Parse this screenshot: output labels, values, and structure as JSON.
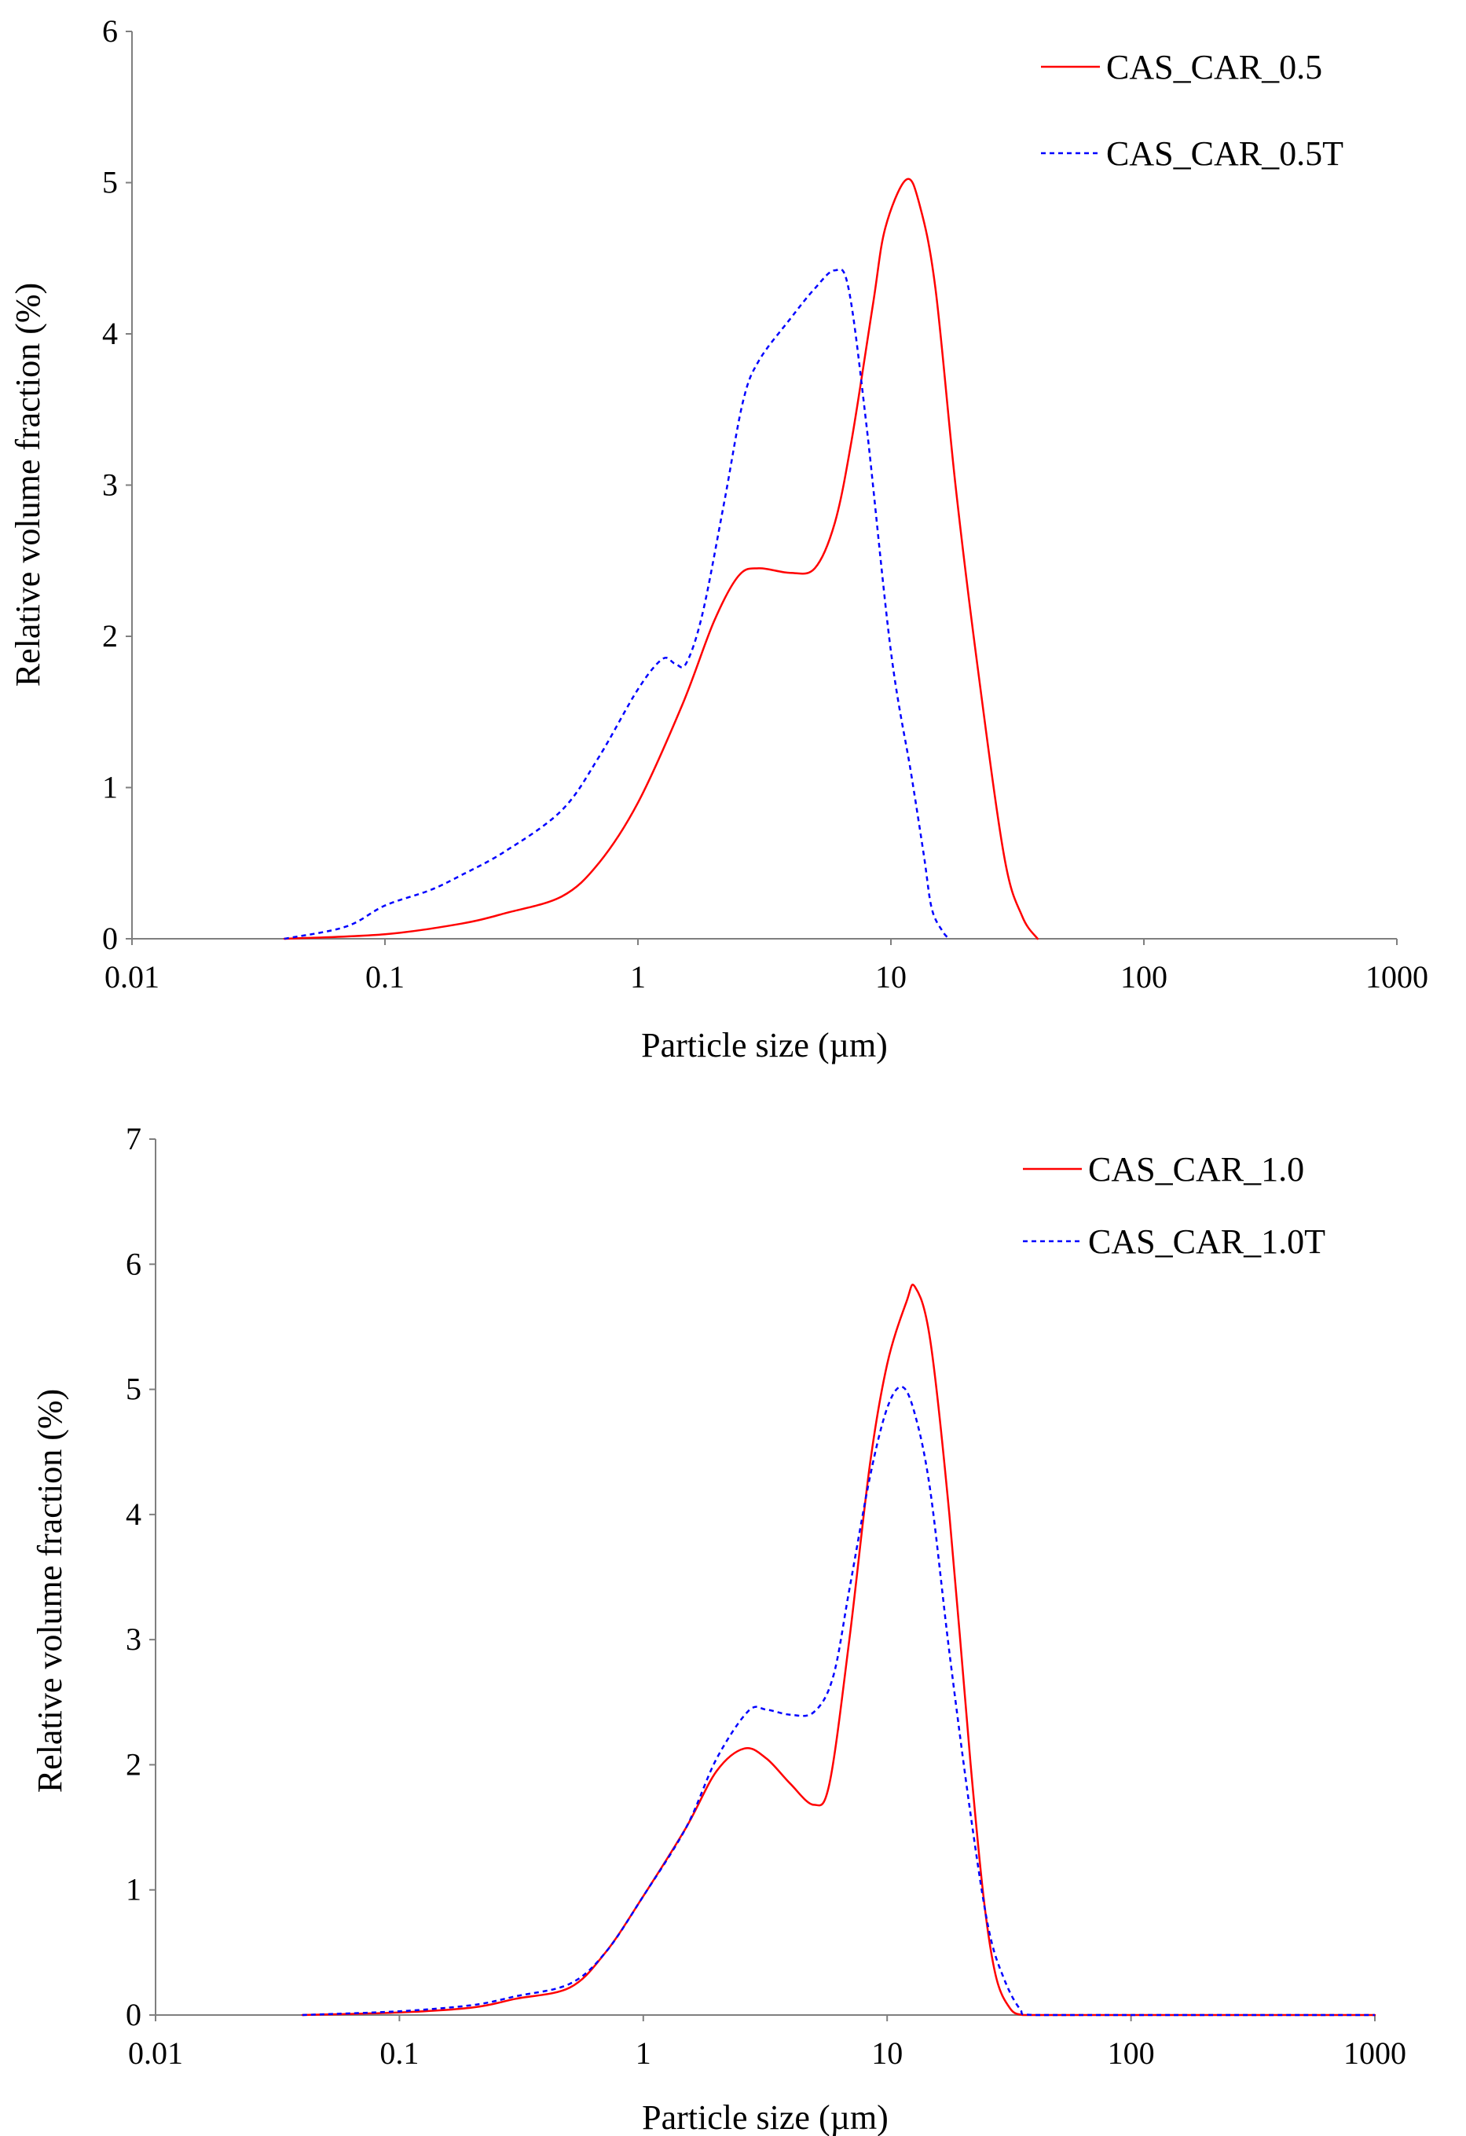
{
  "chart_data": [
    {
      "type": "line",
      "xscale": "log",
      "xlabel": "Particle size (µm)",
      "ylabel": "Relative volume fraction (%)",
      "xlim": [
        0.01,
        1000
      ],
      "ylim": [
        0,
        6
      ],
      "xticks": [
        0.01,
        0.1,
        1,
        10,
        100,
        1000
      ],
      "xtick_labels": [
        "0.01",
        "0.1",
        "1",
        "10",
        "100",
        "1000"
      ],
      "yticks": [
        0,
        1,
        2,
        3,
        4,
        5,
        6
      ],
      "ytick_labels": [
        "0",
        "1",
        "2",
        "3",
        "4",
        "5",
        "6"
      ],
      "grid": false,
      "legend_position": "top-right",
      "series": [
        {
          "name": "CAS_CAR_0.5",
          "color": "#ff0000",
          "style": "solid",
          "x": [
            0.04,
            0.1,
            0.2,
            0.3,
            0.5,
            0.7,
            1.0,
            1.5,
            2.0,
            2.5,
            3.0,
            4.0,
            5.0,
            6.0,
            7.0,
            8.5,
            9.5,
            11.5,
            13.0,
            15.0,
            18.0,
            22.0,
            28.0,
            33.0,
            38.0
          ],
          "y": [
            0.0,
            0.03,
            0.1,
            0.17,
            0.28,
            0.5,
            0.9,
            1.55,
            2.1,
            2.4,
            2.45,
            2.42,
            2.45,
            2.75,
            3.3,
            4.2,
            4.7,
            5.02,
            4.85,
            4.3,
            3.0,
            1.8,
            0.55,
            0.15,
            0.0
          ]
        },
        {
          "name": "CAS_CAR_0.5T",
          "color": "#0000ff",
          "style": "dashed",
          "x": [
            0.04,
            0.07,
            0.1,
            0.15,
            0.2,
            0.3,
            0.5,
            0.7,
            1.0,
            1.25,
            1.4,
            1.55,
            1.8,
            2.2,
            2.6,
            3.0,
            4.0,
            5.0,
            6.0,
            6.8,
            8.0,
            10.0,
            12.0,
            13.5,
            14.5,
            16.0,
            17.0
          ],
          "y": [
            0.0,
            0.08,
            0.22,
            0.32,
            0.42,
            0.58,
            0.85,
            1.2,
            1.65,
            1.85,
            1.82,
            1.82,
            2.15,
            2.9,
            3.55,
            3.82,
            4.1,
            4.3,
            4.42,
            4.3,
            3.4,
            1.9,
            1.1,
            0.55,
            0.2,
            0.05,
            0.0
          ]
        }
      ]
    },
    {
      "type": "line",
      "xscale": "log",
      "xlabel": "Particle size (µm)",
      "ylabel": "Relative volume fraction (%)",
      "xlim": [
        0.01,
        1000
      ],
      "ylim": [
        0,
        7
      ],
      "xticks": [
        0.01,
        0.1,
        1,
        10,
        100,
        1000
      ],
      "xtick_labels": [
        "0.01",
        "0.1",
        "1",
        "10",
        "100",
        "1000"
      ],
      "yticks": [
        0,
        1,
        2,
        3,
        4,
        5,
        6,
        7
      ],
      "ytick_labels": [
        "0",
        "1",
        "2",
        "3",
        "4",
        "5",
        "6",
        "7"
      ],
      "grid": false,
      "legend_position": "top-right",
      "series": [
        {
          "name": "CAS_CAR_1.0",
          "color": "#ff0000",
          "style": "solid",
          "x": [
            0.04,
            0.1,
            0.2,
            0.3,
            0.5,
            0.7,
            1.0,
            1.5,
            2.0,
            2.6,
            3.2,
            4.0,
            5.0,
            5.8,
            7.0,
            8.5,
            10.0,
            12.0,
            13.0,
            15.0,
            18.0,
            22.0,
            25.0,
            28.0,
            32.0,
            36.0,
            40.0,
            100,
            1000
          ],
          "y": [
            0.0,
            0.02,
            0.06,
            0.13,
            0.22,
            0.5,
            0.95,
            1.5,
            1.95,
            2.13,
            2.05,
            1.85,
            1.68,
            1.85,
            3.0,
            4.4,
            5.2,
            5.7,
            5.82,
            5.4,
            4.0,
            2.0,
            0.9,
            0.3,
            0.05,
            0.0,
            0.0,
            0.0,
            0.0
          ]
        },
        {
          "name": "CAS_CAR_1.0T",
          "color": "#0000ff",
          "style": "dashed",
          "x": [
            0.04,
            0.1,
            0.2,
            0.3,
            0.5,
            0.7,
            1.0,
            1.5,
            2.0,
            2.7,
            3.2,
            4.0,
            5.0,
            6.0,
            7.0,
            8.5,
            10.0,
            11.5,
            13.0,
            15.0,
            18.0,
            22.0,
            26.0,
            30.0,
            35.0,
            40.0,
            100,
            1000
          ],
          "y": [
            0.0,
            0.03,
            0.08,
            0.15,
            0.25,
            0.5,
            0.95,
            1.5,
            2.05,
            2.43,
            2.44,
            2.4,
            2.42,
            2.7,
            3.4,
            4.3,
            4.85,
            5.02,
            4.8,
            4.2,
            2.9,
            1.6,
            0.7,
            0.3,
            0.05,
            0.0,
            0.0,
            0.0
          ]
        }
      ]
    }
  ]
}
